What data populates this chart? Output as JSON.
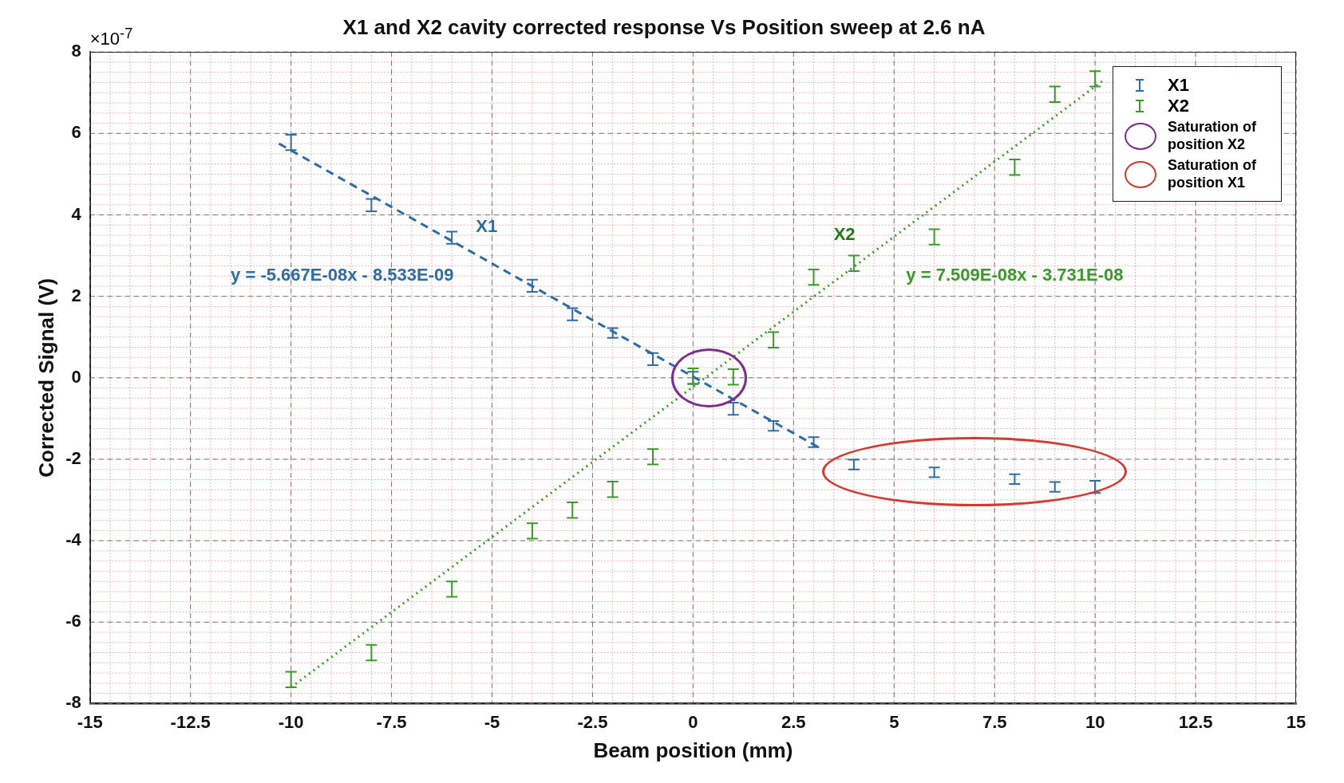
{
  "chart_data": {
    "type": "scatter",
    "title": "X1 and X2 cavity corrected response Vs Position sweep at 2.6 nA",
    "xlabel": "Beam position (mm)",
    "ylabel": "Corrected Signal (V)",
    "xlim": [
      -15,
      15
    ],
    "xticks": [
      -15,
      -12.5,
      -10,
      -7.5,
      -5,
      -2.5,
      0,
      2.5,
      5,
      7.5,
      10,
      12.5,
      15
    ],
    "ylim": [
      -8,
      8
    ],
    "yticks": [
      -8,
      -6,
      -4,
      -2,
      0,
      2,
      4,
      6,
      8
    ],
    "grid": true,
    "legend": "top right",
    "series": [
      {
        "name": "X1",
        "color": "#2e6da4",
        "x": [
          -10,
          -8,
          -6,
          -4,
          -3,
          -2,
          -1,
          0,
          1,
          2,
          3,
          4,
          6,
          8,
          9,
          10
        ],
        "values": [
          5.78,
          4.24,
          3.44,
          2.26,
          1.56,
          1.1,
          0.46,
          0.0,
          -0.76,
          -1.18,
          -1.58,
          -2.13,
          -2.32,
          -2.49,
          -2.68,
          -2.68
        ],
        "errors": [
          0.19,
          0.15,
          0.15,
          0.15,
          0.15,
          0.12,
          0.15,
          0.15,
          0.15,
          0.12,
          0.12,
          0.12,
          0.12,
          0.12,
          0.12,
          0.15
        ]
      },
      {
        "name": "X2",
        "color": "#3a9a2a",
        "x": [
          -10,
          -8,
          -6,
          -4,
          -3,
          -2,
          -1,
          0,
          1,
          2,
          3,
          4,
          6,
          8,
          9,
          10
        ],
        "values": [
          -7.41,
          -6.75,
          -5.19,
          -3.76,
          -3.25,
          -2.74,
          -1.94,
          0.04,
          0.02,
          0.93,
          2.47,
          2.81,
          3.46,
          5.17,
          6.96,
          7.34
        ],
        "errors": [
          0.19,
          0.19,
          0.19,
          0.19,
          0.19,
          0.19,
          0.19,
          0.19,
          0.19,
          0.19,
          0.19,
          0.19,
          0.19,
          0.19,
          0.19,
          0.19
        ]
      },
      {
        "type": "line",
        "color": "#2e6da4",
        "line_style": "dashed",
        "x": [
          -10.3,
          3.2
        ],
        "values": [
          5.75,
          -1.75
        ]
      },
      {
        "type": "line",
        "color": "#3a9a2a",
        "line_style": "dotted",
        "x": [
          -10,
          10.2
        ],
        "values": [
          -7.6,
          7.3
        ]
      }
    ],
    "annotations": [
      "×10$^{-7}$",
      "X1",
      "X2",
      "y = -5.667E-08x - 8.533E-09",
      "y = 7.509E-08x - 3.731E-08",
      "Saturation of position X2",
      "Saturation of position X1"
    ]
  }
}
